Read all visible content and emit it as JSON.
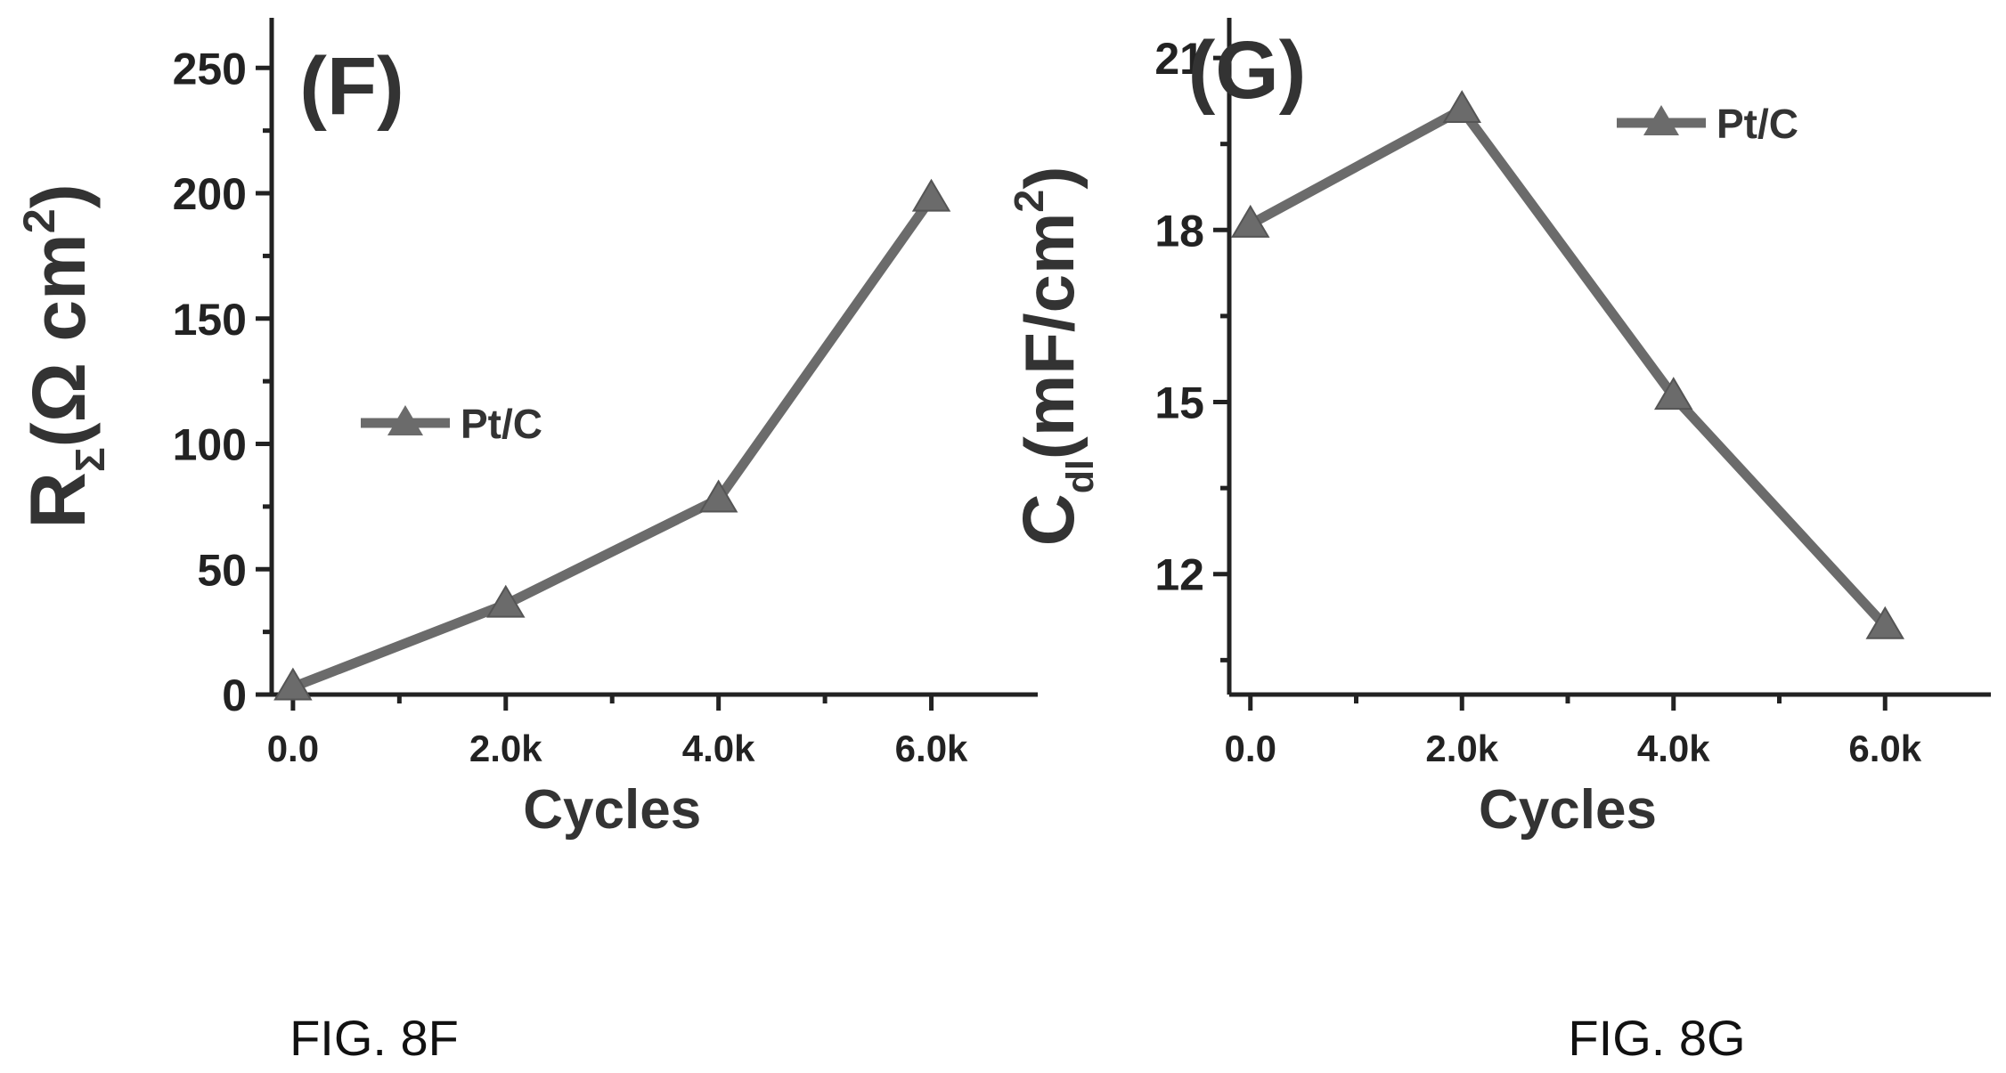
{
  "captions": [
    "FIG. 8F",
    "FIG. 8G"
  ],
  "colors": {
    "series": "#6b6b6b",
    "axis": "#222222"
  },
  "chart_data": [
    {
      "type": "line",
      "panel_label": "(F)",
      "x": [
        0,
        2000,
        4000,
        6000
      ],
      "x_tick_values": [
        0,
        2000,
        4000,
        6000
      ],
      "x_tick_labels": [
        "0.0",
        "2.0k",
        "4.0k",
        "6.0k"
      ],
      "xlim": [
        -200,
        7000
      ],
      "xlabel": "Cycles",
      "ylabel_main": "R",
      "ylabel_sub": "Σ",
      "ylabel_units": "(Ω cm",
      "ylabel_sup": "2",
      "ylabel_close": ")",
      "ylim": [
        0,
        270
      ],
      "y_tick_values": [
        0,
        50,
        100,
        150,
        200,
        250
      ],
      "y_tick_labels": [
        "0",
        "50",
        "100",
        "150",
        "200",
        "250"
      ],
      "series": [
        {
          "name": "Pt/C",
          "values": [
            3,
            36,
            78,
            198
          ],
          "marker": "triangle"
        }
      ],
      "legend": "middle-left",
      "grid": false
    },
    {
      "type": "line",
      "panel_label": "(G)",
      "x": [
        0,
        2000,
        4000,
        6000
      ],
      "x_tick_values": [
        0,
        2000,
        4000,
        6000
      ],
      "x_tick_labels": [
        "0.0",
        "2.0k",
        "4.0k",
        "6.0k"
      ],
      "xlim": [
        -200,
        7000
      ],
      "xlabel": "Cycles",
      "ylabel_main": "C",
      "ylabel_sub": "dl",
      "ylabel_units": "(mF/cm",
      "ylabel_sup": "2",
      "ylabel_close": ")",
      "ylim": [
        9.9,
        21.7
      ],
      "y_tick_values": [
        12,
        15,
        18,
        21
      ],
      "y_tick_labels": [
        "12",
        "15",
        "18",
        "21"
      ],
      "series": [
        {
          "name": "Pt/C",
          "values": [
            18.1,
            20.1,
            15.1,
            11.1
          ],
          "marker": "triangle"
        }
      ],
      "legend": "top-right",
      "grid": false
    }
  ]
}
